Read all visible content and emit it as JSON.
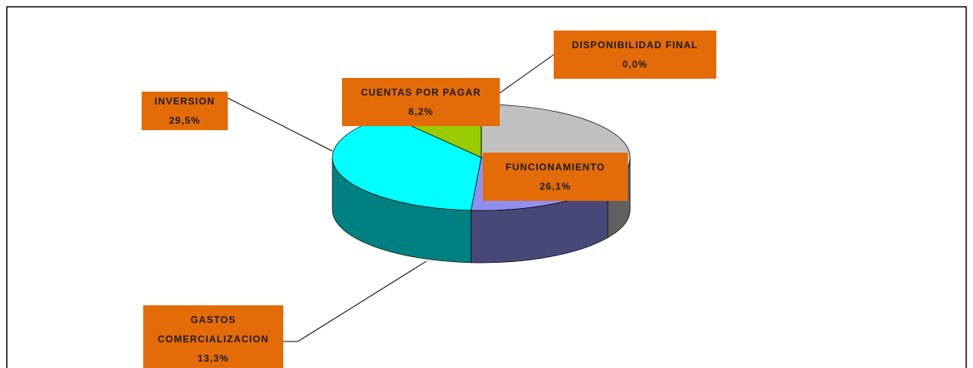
{
  "chart_data": {
    "type": "pie",
    "categories": [
      "FUNCIONAMIENTO",
      "GASTOS COMERCIALIZACION",
      "INVERSION",
      "CUENTAS POR PAGAR",
      "DISPONIBILIDAD FINAL"
    ],
    "values": [
      26.1,
      13.3,
      29.5,
      8.2,
      0.0
    ],
    "value_labels": [
      "26,1%",
      "13,3%",
      "29,5%",
      "8,2%",
      "0,0%"
    ],
    "colors": [
      "#c0c0c0",
      "#8f8ff0",
      "#00ffff",
      "#99cc00",
      "#ffcc00"
    ]
  }
}
